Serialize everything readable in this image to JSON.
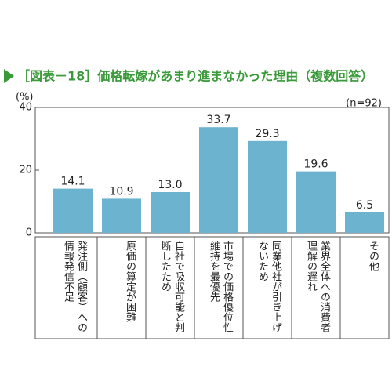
{
  "chart_data": {
    "type": "bar",
    "title": "［図表－18］価格転嫁があまり進まなかった理由（複数回答）",
    "y_label": "(%)",
    "annotation": "(n=92)",
    "categories": [
      "発注側（顧客）への情報発信不足",
      "原価の算定が困難",
      "自社で吸収可能と判断したため",
      "市場での価格優位性維持を最優先",
      "同業他社が引き上げないため",
      "業界全体への消費者理解の遅れ",
      "その他"
    ],
    "values": [
      14.1,
      10.9,
      13.0,
      33.7,
      29.3,
      19.6,
      6.5
    ],
    "value_labels": [
      "14.1",
      "10.9",
      "13.0",
      "33.7",
      "29.3",
      "19.6",
      "6.5"
    ],
    "color": "#6cb3cf",
    "ylim": [
      0,
      40
    ],
    "yticks": [
      0,
      20,
      40
    ],
    "grid": false
  }
}
